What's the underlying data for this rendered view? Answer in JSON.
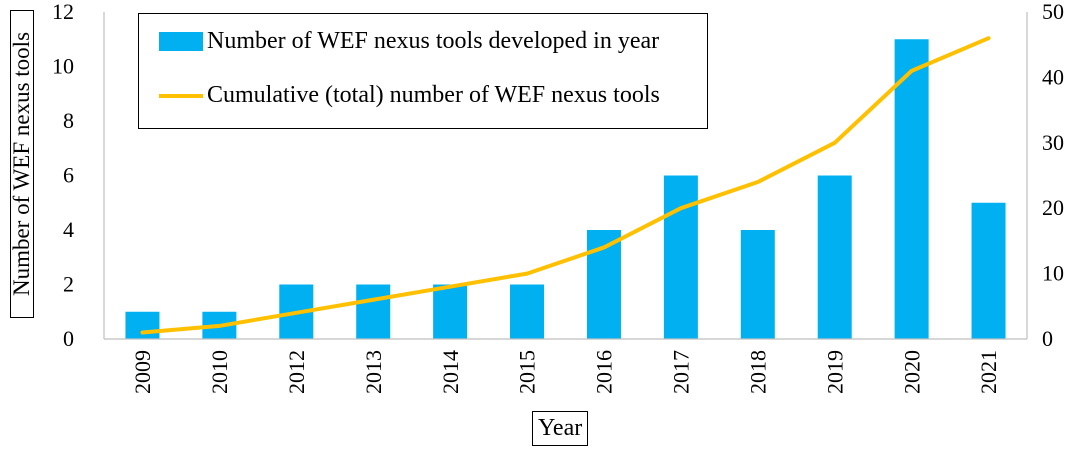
{
  "chart_data": {
    "type": "bar",
    "categories": [
      "2009",
      "2010",
      "2012",
      "2013",
      "2014",
      "2015",
      "2016",
      "2017",
      "2018",
      "2019",
      "2020",
      "2021"
    ],
    "series": [
      {
        "name": "Number of WEF nexus tools developed in year",
        "kind": "bar",
        "axis": "left",
        "color": "#00B0F0",
        "values": [
          1,
          1,
          2,
          2,
          2,
          2,
          4,
          6,
          4,
          6,
          11,
          5
        ]
      },
      {
        "name": "Cumulative (total) number of WEF nexus tools",
        "kind": "line",
        "axis": "right",
        "color": "#FFC000",
        "values": [
          1,
          2,
          4,
          6,
          8,
          10,
          14,
          20,
          24,
          30,
          41,
          46
        ]
      }
    ],
    "xlabel": "Year",
    "ylabel": "Number of WEF nexus tools",
    "ylim": [
      0,
      12
    ],
    "yticks": [
      "0",
      "2",
      "4",
      "6",
      "8",
      "10",
      "12"
    ],
    "y2lim": [
      0,
      50
    ],
    "y2ticks": [
      "0",
      "10",
      "20",
      "30",
      "40",
      "50"
    ],
    "grid": false,
    "legend": "top-left"
  }
}
